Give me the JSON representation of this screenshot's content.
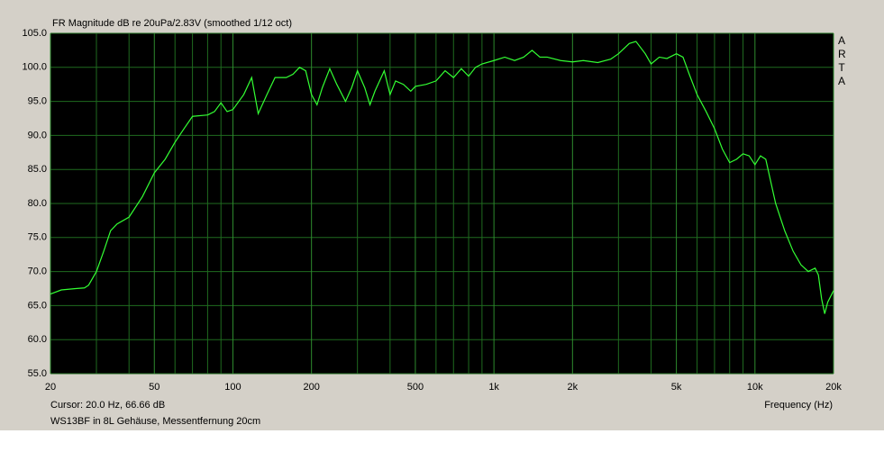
{
  "chart_data": {
    "type": "line",
    "title": "FR Magnitude dB re 20uPa/2.83V (smoothed 1/12 oct)",
    "brand": "ARTA",
    "cursor": "Cursor: 20.0 Hz, 66.66 dB",
    "x_label": "Frequency (Hz)",
    "note": "WS13BF in 8L Gehäuse, Messentfernung 20cm",
    "log_x": true,
    "grid": true,
    "color": "#33ff33",
    "xlim": [
      20,
      20000
    ],
    "ylim": [
      55,
      105
    ],
    "xticks": [
      20,
      50,
      100,
      200,
      500,
      {
        "value": 1000,
        "label": "1k"
      },
      {
        "value": 2000,
        "label": "2k"
      },
      {
        "value": 5000,
        "label": "5k"
      },
      {
        "value": 10000,
        "label": "10k"
      },
      {
        "value": 20000,
        "label": "20k"
      }
    ],
    "xgrid": [
      30,
      40,
      60,
      70,
      80,
      90,
      300,
      400,
      600,
      700,
      800,
      900,
      3000,
      4000,
      6000,
      7000,
      8000,
      9000
    ],
    "yticks": [
      {
        "value": 55,
        "label": "55.0"
      },
      {
        "value": 60,
        "label": "60.0"
      },
      {
        "value": 65,
        "label": "65.0"
      },
      {
        "value": 70,
        "label": "70.0"
      },
      {
        "value": 75,
        "label": "75.0"
      },
      {
        "value": 80,
        "label": "80.0"
      },
      {
        "value": 85,
        "label": "85.0"
      },
      {
        "value": 90,
        "label": "90.0"
      },
      {
        "value": 95,
        "label": "95.0"
      },
      {
        "value": 100,
        "label": "100.0"
      },
      {
        "value": 105,
        "label": "105.0"
      }
    ],
    "x": [
      20,
      22,
      25,
      27,
      28,
      30,
      32,
      34,
      36,
      40,
      45,
      50,
      55,
      60,
      65,
      70,
      80,
      85,
      90,
      95,
      100,
      110,
      118,
      125,
      135,
      145,
      160,
      170,
      180,
      190,
      200,
      210,
      220,
      235,
      250,
      270,
      285,
      300,
      320,
      335,
      350,
      380,
      400,
      420,
      450,
      480,
      500,
      550,
      600,
      650,
      700,
      750,
      800,
      850,
      900,
      1000,
      1100,
      1200,
      1300,
      1400,
      1500,
      1600,
      1800,
      2000,
      2200,
      2500,
      2800,
      3000,
      3300,
      3500,
      3800,
      4000,
      4300,
      4600,
      5000,
      5300,
      5600,
      6000,
      6500,
      7000,
      7500,
      8000,
      8500,
      9000,
      9500,
      10000,
      10500,
      11000,
      12000,
      13000,
      14000,
      15000,
      16000,
      17000,
      17500,
      18000,
      18500,
      19000,
      20000
    ],
    "values": [
      66.7,
      67.3,
      67.5,
      67.6,
      68,
      70,
      73,
      76,
      77,
      78,
      81,
      84.5,
      86.5,
      89,
      91,
      92.8,
      93,
      93.5,
      94.8,
      93.5,
      93.8,
      96,
      98.5,
      93.2,
      96,
      98.5,
      98.5,
      99,
      100,
      99.5,
      96,
      94.5,
      97,
      99.8,
      97.5,
      95,
      97,
      99.5,
      97,
      94.5,
      96.5,
      99.5,
      96,
      98,
      97.5,
      96.5,
      97.2,
      97.5,
      98,
      99.5,
      98.5,
      99.8,
      98.7,
      100,
      100.5,
      101,
      101.5,
      101,
      101.5,
      102.5,
      101.5,
      101.5,
      101,
      100.8,
      101,
      100.7,
      101.2,
      102,
      103.5,
      103.8,
      102,
      100.5,
      101.5,
      101.3,
      102,
      101.5,
      99,
      96,
      93.5,
      91,
      88,
      86,
      86.5,
      87.3,
      87,
      85.7,
      87,
      86.5,
      80,
      76,
      73,
      71,
      70,
      70.5,
      69.5,
      66,
      63.8,
      65.5,
      67.2
    ]
  }
}
